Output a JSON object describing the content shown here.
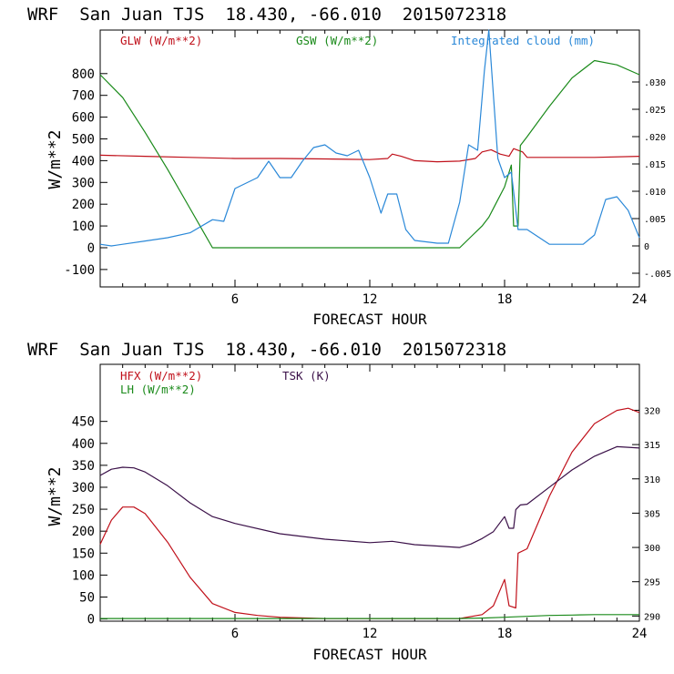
{
  "colors": {
    "red": "#c0101a",
    "green": "#1a8a1a",
    "blue": "#2a88d8",
    "purple": "#3a1048",
    "axis": "#000000"
  },
  "chart_data": [
    {
      "type": "line",
      "title": "WRF  San Juan TJS  18.430, -66.010  2015072318",
      "xlabel": "FORECAST HOUR",
      "ylabel": "W/m**2",
      "xlim": [
        0,
        24
      ],
      "ylim": [
        -180,
        1000
      ],
      "y2lim": [
        -0.0075,
        0.0395
      ],
      "xticks": [
        "6",
        "12",
        "18",
        "24"
      ],
      "yticks": [
        "-100",
        "0",
        "100",
        "200",
        "300",
        "400",
        "500",
        "600",
        "700",
        "800"
      ],
      "y2ticks": [
        "-.005",
        "0",
        ".005",
        ".010",
        ".015",
        ".020",
        ".025",
        ".030"
      ],
      "legend": [
        "GLW (W/m**2)",
        "GSW (W/m**2)",
        "Integrated cloud (mm)"
      ],
      "series": [
        {
          "name": "GLW (W/m**2)",
          "axis": "left",
          "color": "#c0101a",
          "points": [
            [
              0,
              425
            ],
            [
              2,
              420
            ],
            [
              4,
              415
            ],
            [
              6,
              410
            ],
            [
              8,
              410
            ],
            [
              10,
              408
            ],
            [
              12,
              405
            ],
            [
              12.8,
              410
            ],
            [
              13,
              430
            ],
            [
              13.4,
              420
            ],
            [
              14,
              400
            ],
            [
              15,
              395
            ],
            [
              16,
              398
            ],
            [
              16.7,
              410
            ],
            [
              17,
              440
            ],
            [
              17.4,
              450
            ],
            [
              17.8,
              430
            ],
            [
              18.2,
              420
            ],
            [
              18.4,
              455
            ],
            [
              18.8,
              440
            ],
            [
              19,
              415
            ],
            [
              20,
              415
            ],
            [
              22,
              415
            ],
            [
              24,
              420
            ]
          ]
        },
        {
          "name": "GSW (W/m**2)",
          "axis": "left",
          "color": "#1a8a1a",
          "points": [
            [
              0,
              795
            ],
            [
              1,
              690
            ],
            [
              2,
              530
            ],
            [
              3,
              360
            ],
            [
              4,
              180
            ],
            [
              5,
              0
            ],
            [
              6,
              0
            ],
            [
              8,
              0
            ],
            [
              10,
              0
            ],
            [
              12,
              0
            ],
            [
              14,
              0
            ],
            [
              16,
              0
            ],
            [
              16.5,
              50
            ],
            [
              17,
              100
            ],
            [
              17.3,
              140
            ],
            [
              17.6,
              200
            ],
            [
              18,
              280
            ],
            [
              18.3,
              380
            ],
            [
              18.4,
              100
            ],
            [
              18.6,
              100
            ],
            [
              18.7,
              470
            ],
            [
              19,
              510
            ],
            [
              20,
              650
            ],
            [
              21,
              780
            ],
            [
              22,
              860
            ],
            [
              23,
              840
            ],
            [
              24,
              795
            ]
          ]
        },
        {
          "name": "Integrated cloud (mm)",
          "axis": "right",
          "color": "#2a88d8",
          "points": [
            [
              0,
              0.0003
            ],
            [
              0.5,
              0
            ],
            [
              1,
              0.0003
            ],
            [
              2,
              0.0009
            ],
            [
              3,
              0.0015
            ],
            [
              4,
              0.0024
            ],
            [
              5,
              0.0048
            ],
            [
              5.5,
              0.0045
            ],
            [
              6,
              0.0105
            ],
            [
              7,
              0.0125
            ],
            [
              7.5,
              0.0155
            ],
            [
              8,
              0.0125
            ],
            [
              8.5,
              0.0125
            ],
            [
              9,
              0.0155
            ],
            [
              9.5,
              0.018
            ],
            [
              10,
              0.0185
            ],
            [
              10.5,
              0.017
            ],
            [
              11,
              0.0165
            ],
            [
              11.5,
              0.0175
            ],
            [
              12,
              0.0125
            ],
            [
              12.5,
              0.006
            ],
            [
              12.8,
              0.0095
            ],
            [
              13.2,
              0.0095
            ],
            [
              13.6,
              0.003
            ],
            [
              14,
              0.001
            ],
            [
              15,
              0.0005
            ],
            [
              15.5,
              0.0005
            ],
            [
              16,
              0.008
            ],
            [
              16.4,
              0.0185
            ],
            [
              16.8,
              0.0175
            ],
            [
              17.1,
              0.032
            ],
            [
              17.3,
              0.0395
            ],
            [
              17.7,
              0.016
            ],
            [
              18,
              0.0125
            ],
            [
              18.3,
              0.0135
            ],
            [
              18.6,
              0.003
            ],
            [
              19,
              0.003
            ],
            [
              20,
              0.0003
            ],
            [
              21,
              0.0003
            ],
            [
              21.5,
              0.0003
            ],
            [
              22,
              0.002
            ],
            [
              22.5,
              0.0085
            ],
            [
              23,
              0.009
            ],
            [
              23.5,
              0.0065
            ],
            [
              24,
              0.0015
            ]
          ]
        }
      ]
    },
    {
      "type": "line",
      "title": "WRF  San Juan TJS  18.430, -66.010  2015072318",
      "xlabel": "FORECAST HOUR",
      "ylabel": "W/m**2",
      "xlim": [
        0,
        24
      ],
      "ylim": [
        -5,
        580
      ],
      "y2lim": [
        289.25,
        326.7
      ],
      "xticks": [
        "6",
        "12",
        "18",
        "24"
      ],
      "yticks": [
        "0",
        "50",
        "100",
        "150",
        "200",
        "250",
        "300",
        "350",
        "400",
        "450"
      ],
      "y2ticks": [
        "290",
        "295",
        "300",
        "305",
        "310",
        "315",
        "320"
      ],
      "legend": [
        "HFX (W/m**2)",
        "LH (W/m**2)",
        "TSK (K)"
      ],
      "series": [
        {
          "name": "HFX (W/m**2)",
          "axis": "left",
          "color": "#c0101a",
          "points": [
            [
              0,
              170
            ],
            [
              0.5,
              225
            ],
            [
              1,
              255
            ],
            [
              1.5,
              255
            ],
            [
              2,
              240
            ],
            [
              3,
              175
            ],
            [
              4,
              95
            ],
            [
              5,
              35
            ],
            [
              6,
              15
            ],
            [
              7,
              8
            ],
            [
              8,
              4
            ],
            [
              10,
              1
            ],
            [
              12,
              1
            ],
            [
              14,
              1
            ],
            [
              16,
              1
            ],
            [
              17,
              10
            ],
            [
              17.5,
              30
            ],
            [
              18,
              90
            ],
            [
              18.2,
              30
            ],
            [
              18.5,
              25
            ],
            [
              18.6,
              150
            ],
            [
              19,
              160
            ],
            [
              20,
              280
            ],
            [
              21,
              380
            ],
            [
              22,
              445
            ],
            [
              23,
              475
            ],
            [
              23.5,
              480
            ],
            [
              24,
              470
            ]
          ]
        },
        {
          "name": "LH (W/m**2)",
          "axis": "left",
          "color": "#1a8a1a",
          "points": [
            [
              0,
              1
            ],
            [
              4,
              1
            ],
            [
              8,
              1
            ],
            [
              12,
              1
            ],
            [
              16,
              1
            ],
            [
              17,
              2
            ],
            [
              18,
              4
            ],
            [
              19,
              6
            ],
            [
              20,
              8
            ],
            [
              21,
              9
            ],
            [
              22,
              10
            ],
            [
              24,
              10
            ]
          ]
        },
        {
          "name": "TSK (K)",
          "axis": "right",
          "color": "#3a1048",
          "points": [
            [
              0,
              310.5
            ],
            [
              0.5,
              311.4
            ],
            [
              1,
              311.7
            ],
            [
              1.5,
              311.6
            ],
            [
              2,
              311.0
            ],
            [
              3,
              309.0
            ],
            [
              4,
              306.5
            ],
            [
              5,
              304.5
            ],
            [
              6,
              303.5
            ],
            [
              8,
              302.0
            ],
            [
              10,
              301.2
            ],
            [
              12,
              300.7
            ],
            [
              13,
              300.9
            ],
            [
              14,
              300.4
            ],
            [
              15,
              300.2
            ],
            [
              16,
              300.0
            ],
            [
              16.5,
              300.5
            ],
            [
              17,
              301.3
            ],
            [
              17.5,
              302.3
            ],
            [
              18,
              304.5
            ],
            [
              18.2,
              302.8
            ],
            [
              18.4,
              302.8
            ],
            [
              18.5,
              305.5
            ],
            [
              18.7,
              306.2
            ],
            [
              19,
              306.3
            ],
            [
              20,
              308.8
            ],
            [
              21,
              311.3
            ],
            [
              22,
              313.3
            ],
            [
              23,
              314.7
            ],
            [
              24,
              314.5
            ]
          ]
        }
      ]
    }
  ]
}
